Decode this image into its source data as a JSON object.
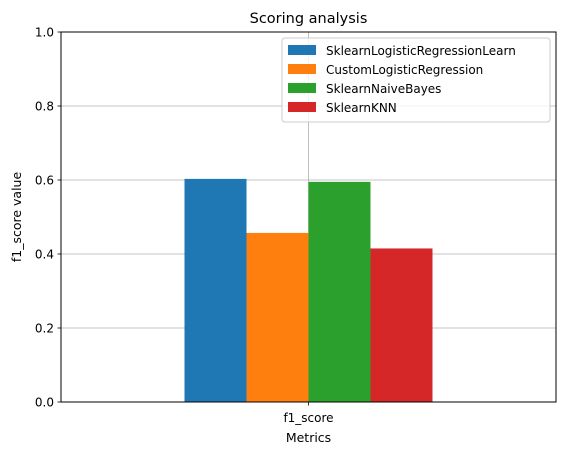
{
  "chart_data": {
    "type": "bar",
    "title": "Scoring analysis",
    "xlabel": "Metrics",
    "ylabel": "f1_score value",
    "categories": [
      "f1_score"
    ],
    "series": [
      {
        "name": "SklearnLogisticRegressionLearn",
        "values": [
          0.603
        ],
        "color": "#1f77b4"
      },
      {
        "name": "CustomLogisticRegression",
        "values": [
          0.457
        ],
        "color": "#ff7f0e"
      },
      {
        "name": "SklearnNaiveBayes",
        "values": [
          0.595
        ],
        "color": "#2ca02c"
      },
      {
        "name": "SklearnKNN",
        "values": [
          0.415
        ],
        "color": "#d62728"
      }
    ],
    "ylim": [
      0,
      1
    ],
    "yticks": [
      "0.0",
      "0.2",
      "0.4",
      "0.6",
      "0.8",
      "1.0"
    ],
    "grid": true,
    "legend_position": "top-right"
  }
}
